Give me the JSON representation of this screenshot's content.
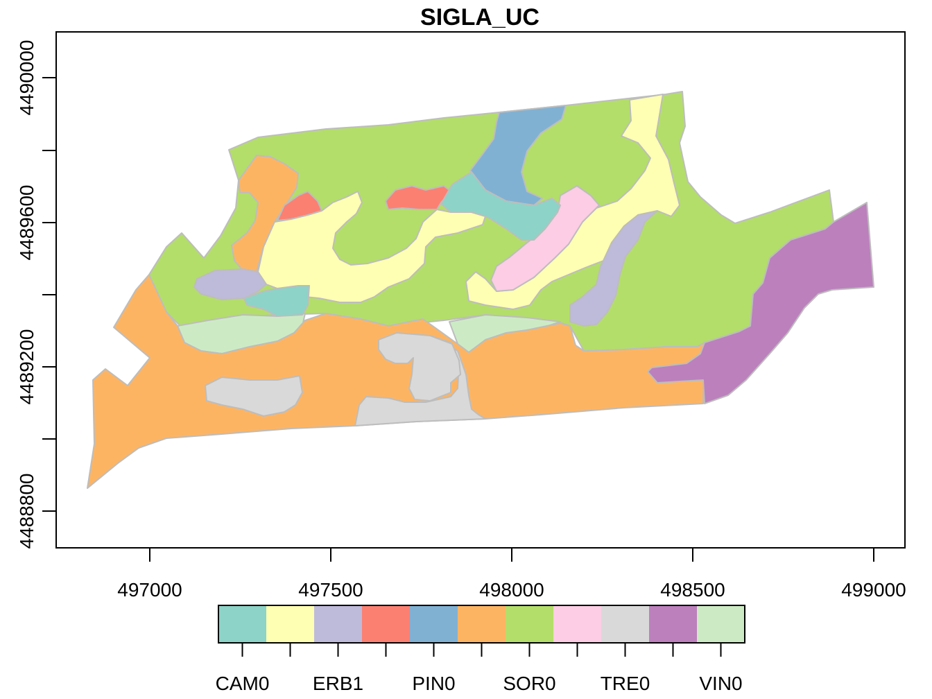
{
  "title": "SIGLA_UC",
  "x_axis": {
    "ticks": [
      "497000",
      "497500",
      "498000",
      "498500",
      "499000"
    ]
  },
  "y_axis": {
    "ticks": [
      "4488800",
      "4489200",
      "4489600",
      "4490000"
    ]
  },
  "legend": {
    "classes": [
      {
        "code": "CAM0",
        "color": "#8DD3C7",
        "labeled": true
      },
      {
        "code": "",
        "color": "#FFFFB3",
        "labeled": false
      },
      {
        "code": "ERB1",
        "color": "#BEBADA",
        "labeled": true
      },
      {
        "code": "",
        "color": "#FB8072",
        "labeled": false
      },
      {
        "code": "PIN0",
        "color": "#80B1D3",
        "labeled": true
      },
      {
        "code": "",
        "color": "#FDB462",
        "labeled": false
      },
      {
        "code": "SOR0",
        "color": "#B3DE69",
        "labeled": true
      },
      {
        "code": "",
        "color": "#FCCDE5",
        "labeled": false
      },
      {
        "code": "TRE0",
        "color": "#D9D9D9",
        "labeled": true
      },
      {
        "code": "",
        "color": "#BC80BD",
        "labeled": false
      },
      {
        "code": "VIN0",
        "color": "#CCEBC5",
        "labeled": true
      }
    ]
  },
  "map": {
    "border_color": "#BDBDBD"
  }
}
